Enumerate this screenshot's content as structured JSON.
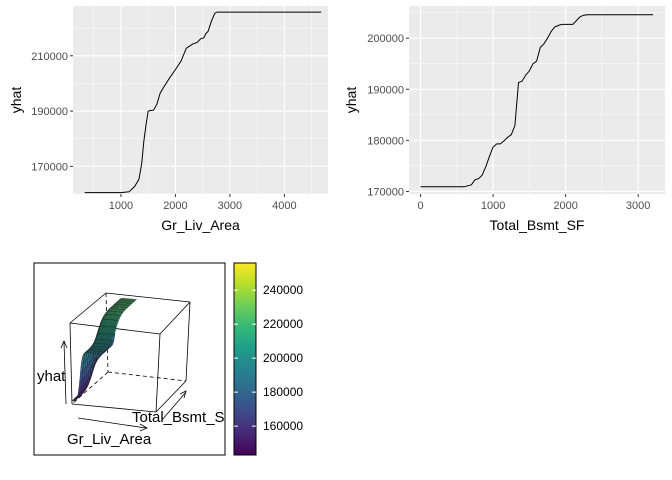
{
  "colors": {
    "panel_bg": "#ebebeb",
    "grid": "#ffffff",
    "line": "#000000",
    "viridis": [
      "#440154",
      "#482878",
      "#3e4989",
      "#31688e",
      "#26828e",
      "#1f9e89",
      "#35b779",
      "#6ece58",
      "#b5de2b",
      "#fde725"
    ]
  },
  "chart_data": [
    {
      "type": "line",
      "xlabel": "Gr_Liv_Area",
      "ylabel": "yhat",
      "xlim": [
        120,
        4800
      ],
      "ylim": [
        160000,
        228000
      ],
      "x_ticks": [
        1000,
        2000,
        3000,
        4000
      ],
      "x_tick_labels": [
        "1000",
        "2000",
        "3000",
        "4000"
      ],
      "y_ticks": [
        170000,
        190000,
        210000
      ],
      "y_tick_labels": [
        "170000",
        "190000",
        "210000"
      ],
      "x": [
        334,
        600,
        800,
        1000,
        1150,
        1250,
        1330,
        1380,
        1420,
        1460,
        1500,
        1540,
        1600,
        1660,
        1720,
        1780,
        1900,
        2000,
        2100,
        2200,
        2260,
        2320,
        2400,
        2460,
        2520,
        2560,
        2600,
        2660,
        2720,
        2760,
        3000,
        3500,
        4000,
        4676
      ],
      "y": [
        160500,
        160500,
        160500,
        160500,
        160800,
        162700,
        165300,
        171000,
        179000,
        185000,
        190000,
        190200,
        190300,
        192500,
        196500,
        198500,
        202200,
        205000,
        208000,
        212700,
        213500,
        214300,
        214800,
        216100,
        216500,
        218000,
        218800,
        222500,
        225300,
        225800,
        225800,
        225800,
        225800,
        225800
      ]
    },
    {
      "type": "line",
      "xlabel": "Total_Bsmt_SF",
      "ylabel": "yhat",
      "xlim": [
        -160,
        3370
      ],
      "ylim": [
        169500,
        206300
      ],
      "x_ticks": [
        0,
        1000,
        2000,
        3000
      ],
      "x_tick_labels": [
        "0",
        "1000",
        "2000",
        "3000"
      ],
      "y_ticks": [
        170000,
        180000,
        190000,
        200000
      ],
      "y_tick_labels": [
        "170000",
        "180000",
        "190000",
        "200000"
      ],
      "x": [
        0,
        300,
        600,
        700,
        750,
        800,
        850,
        900,
        950,
        1000,
        1050,
        1100,
        1150,
        1200,
        1250,
        1300,
        1350,
        1400,
        1450,
        1500,
        1550,
        1600,
        1650,
        1700,
        1750,
        1800,
        1850,
        1900,
        1950,
        2000,
        2100,
        2200,
        2250,
        2300,
        2500,
        3000,
        3206
      ],
      "y": [
        170900,
        170900,
        170900,
        171300,
        172300,
        172500,
        173200,
        174900,
        176900,
        178700,
        179300,
        179300,
        179900,
        180600,
        181100,
        182900,
        191300,
        191600,
        192800,
        193600,
        195000,
        195500,
        198200,
        198900,
        200000,
        201300,
        202200,
        202500,
        202700,
        202700,
        202700,
        204200,
        204500,
        204600,
        204600,
        204600,
        204600
      ]
    },
    {
      "type": "surface",
      "xlabel": "Gr_Liv_Area",
      "ylabel": "Total_Bsmt_S",
      "zlabel": "yhat",
      "colorbar": {
        "min": 143000,
        "max": 256000,
        "ticks": [
          160000,
          180000,
          200000,
          220000,
          240000
        ],
        "tick_labels": [
          "160000",
          "180000",
          "200000",
          "220000",
          "240000"
        ]
      }
    }
  ]
}
